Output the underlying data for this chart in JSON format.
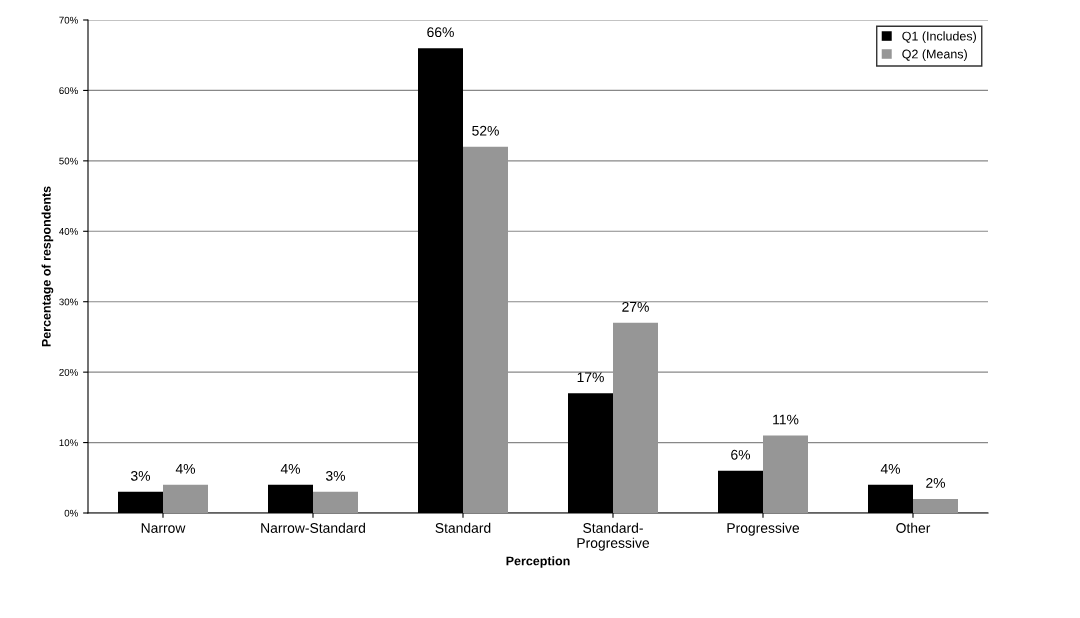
{
  "chart_data": {
    "type": "bar",
    "xlabel": "Perception",
    "ylabel": "Percentage of respondents",
    "categories": [
      "Narrow",
      "Narrow-Standard",
      "Standard",
      "Standard-\nProgressive",
      "Progressive",
      "Other"
    ],
    "value_labels": [
      [
        "3%",
        "4%",
        "66%",
        "17%",
        "6%",
        "4%"
      ],
      [
        "4%",
        "3%",
        "52%",
        "27%",
        "11%",
        "2%"
      ]
    ],
    "series": [
      {
        "name": "Q1 (Includes)",
        "color": "#000000",
        "values": [
          3,
          4,
          66,
          17,
          6,
          4
        ]
      },
      {
        "name": "Q2 (Means)",
        "color": "#969696",
        "values": [
          4,
          3,
          52,
          27,
          11,
          2
        ]
      }
    ],
    "ylim": [
      0,
      70
    ],
    "yticks": [
      {
        "value": 0,
        "label": "0%"
      },
      {
        "value": 10,
        "label": "10%"
      },
      {
        "value": 20,
        "label": "20%"
      },
      {
        "value": 30,
        "label": "30%"
      },
      {
        "value": 40,
        "label": "40%"
      },
      {
        "value": 50,
        "label": "50%"
      },
      {
        "value": 60,
        "label": "60%"
      },
      {
        "value": 70,
        "label": "70%"
      }
    ],
    "grid": "y",
    "legend": "top right"
  }
}
